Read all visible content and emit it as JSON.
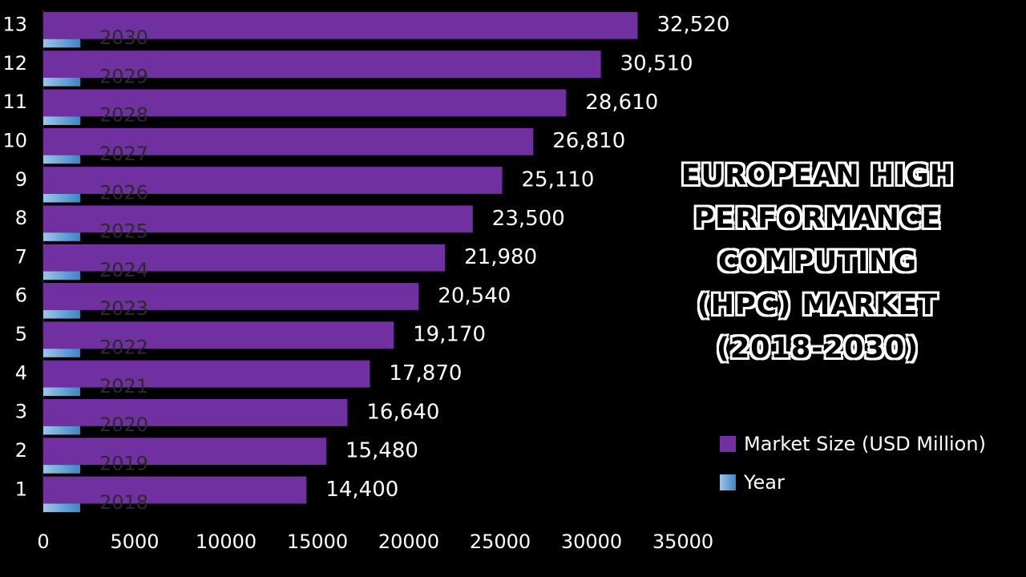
{
  "title_lines": [
    "EUROPEAN  HIGH",
    "PERFORMANCE",
    "COMPUTING",
    "(HPC) MARKET",
    "(2018-2030)"
  ],
  "legend": [
    {
      "label": "Market Size (USD Million)",
      "color": "#7030a0"
    },
    {
      "label": "Year",
      "color": "#6fa8dc"
    }
  ],
  "chart_data": {
    "type": "bar",
    "orientation": "horizontal",
    "categories": [
      "1",
      "2",
      "3",
      "4",
      "5",
      "6",
      "7",
      "8",
      "9",
      "10",
      "11",
      "12",
      "13"
    ],
    "series": [
      {
        "name": "Market Size (USD Million)",
        "color": "#7030a0",
        "values": [
          14400,
          15480,
          16640,
          17870,
          19170,
          20540,
          21980,
          23500,
          25110,
          26810,
          28610,
          30510,
          32520
        ],
        "value_labels": [
          "14,400",
          "15,480",
          "16,640",
          "17,870",
          "19,170",
          "20,540",
          "21,980",
          "23,500",
          "25,110",
          "26,810",
          "28,610",
          "30,510",
          "32,520"
        ]
      },
      {
        "name": "Year",
        "color": "#6fa8dc",
        "values": [
          2018,
          2019,
          2020,
          2021,
          2022,
          2023,
          2024,
          2025,
          2026,
          2027,
          2028,
          2029,
          2030
        ]
      }
    ],
    "xlim": [
      0,
      35000
    ],
    "xticks": [
      0,
      5000,
      10000,
      15000,
      20000,
      25000,
      30000,
      35000
    ],
    "xtick_labels": [
      "0",
      "5000",
      "10000",
      "15000",
      "20000",
      "25000",
      "30000",
      "35000"
    ],
    "legend_position": "right"
  }
}
